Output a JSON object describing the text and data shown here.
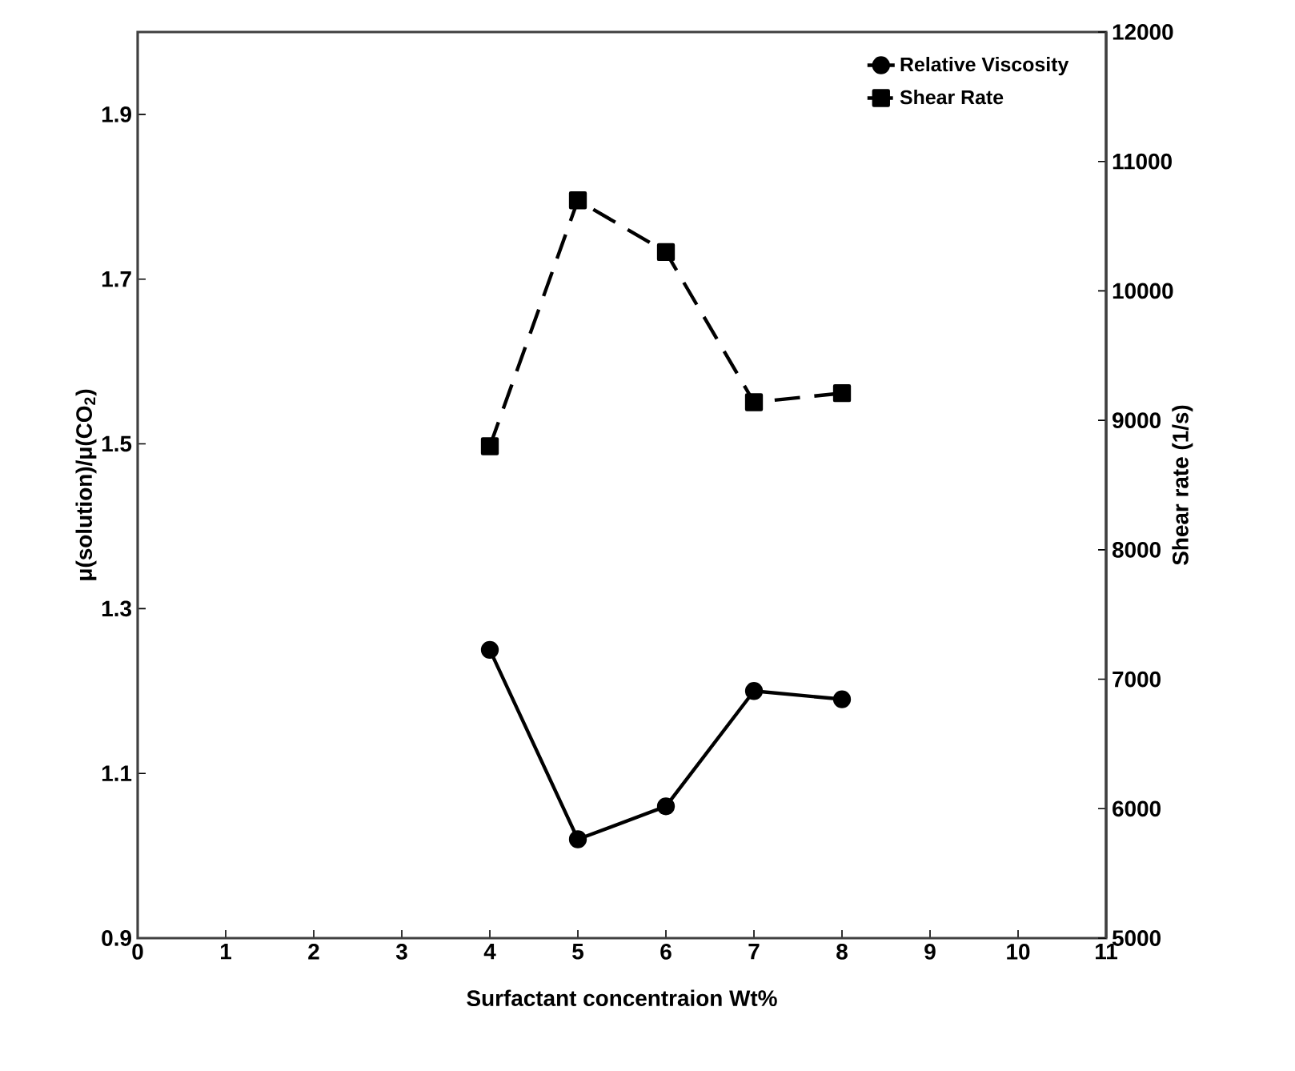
{
  "chart_data": {
    "type": "line",
    "xlabel": "Surfactant concentraion Wt%",
    "ylabel": "μ(solution)/μ(CO$_{2}$)",
    "y2label": "Shear rate (1/s)",
    "x": [
      4,
      5,
      6,
      7,
      8
    ],
    "series": [
      {
        "name": "Relative Viscosity",
        "color": "#000000",
        "values": [
          1.25,
          1.02,
          1.06,
          1.2,
          1.19
        ],
        "marker": "circle",
        "line_style": "solid"
      },
      {
        "name": "Shear Rate",
        "color": "#000000",
        "values": [
          8800,
          10700,
          10300,
          9140,
          9210
        ],
        "marker": "square",
        "line_style": "dashed",
        "axis": "y2"
      }
    ],
    "xlim": [
      0,
      11
    ],
    "xticks": [
      0,
      1,
      2,
      3,
      4,
      5,
      6,
      7,
      8,
      9,
      10,
      11
    ],
    "ylim": [
      0.9,
      2.0
    ],
    "yticks": [
      0.9,
      1.1,
      1.3,
      1.5,
      1.7,
      1.9
    ],
    "y2lim": [
      5000,
      12000
    ],
    "y2ticks": [
      5000,
      6000,
      7000,
      8000,
      9000,
      10000,
      11000,
      12000
    ],
    "legend": "top right",
    "grid": false
  }
}
